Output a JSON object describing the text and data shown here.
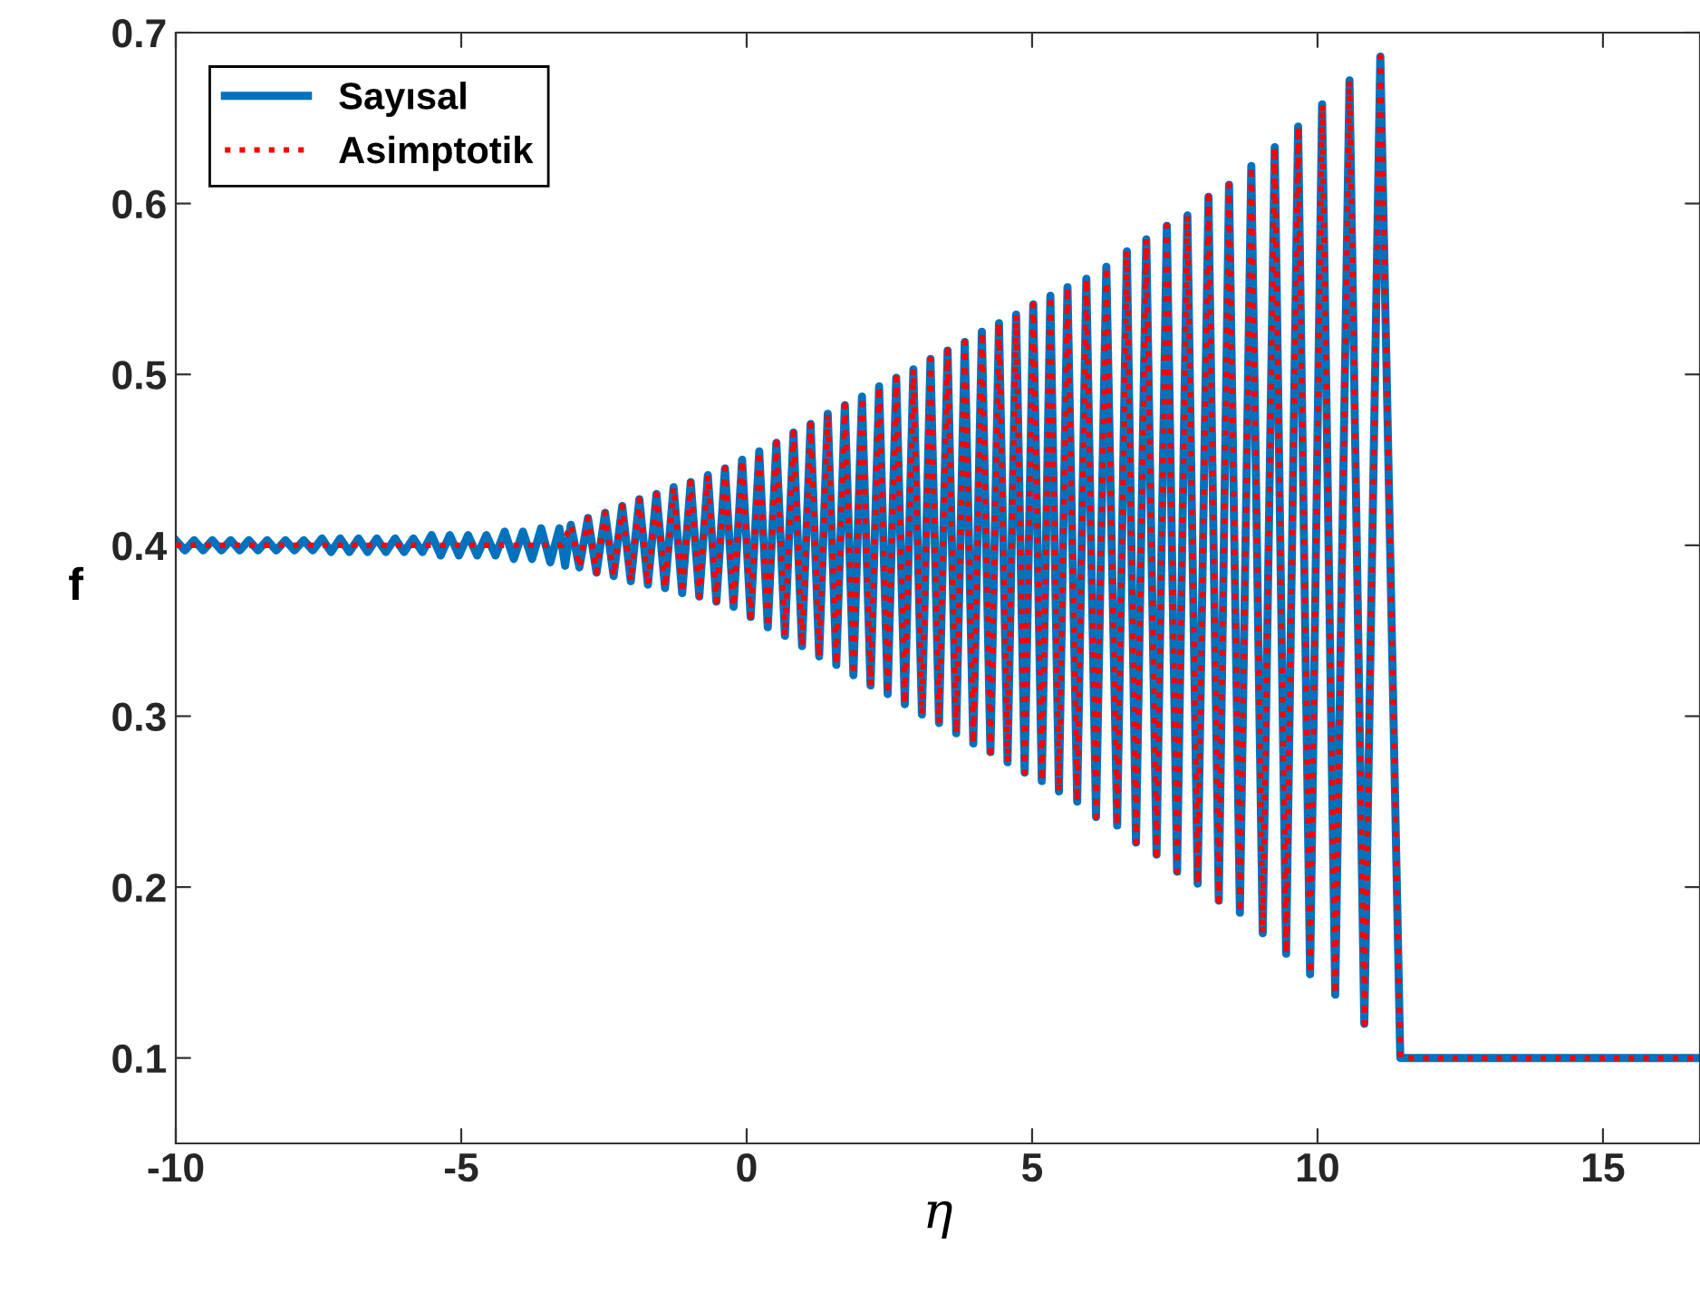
{
  "chart_data": {
    "type": "line",
    "xlabel": "η",
    "ylabel": "f",
    "xlim": [
      -10,
      16.7
    ],
    "ylim": [
      0.05,
      0.7
    ],
    "xticks": [
      -10,
      -5,
      0,
      5,
      10,
      15
    ],
    "yticks": [
      0.1,
      0.2,
      0.3,
      0.4,
      0.5,
      0.6,
      0.7
    ],
    "grid": false,
    "legend": "top left",
    "marker": "none",
    "series": [
      {
        "name": "Sayısal",
        "color": "#0072bd",
        "line_style": "solid",
        "x": [
          -10.0,
          -9.84,
          -9.68,
          -9.52,
          -9.36,
          -9.2,
          -9.04,
          -8.88,
          -8.72,
          -8.56,
          -8.4,
          -8.24,
          -8.08,
          -7.92,
          -7.76,
          -7.6,
          -7.44,
          -7.28,
          -7.12,
          -6.96,
          -6.8,
          -6.64,
          -6.48,
          -6.32,
          -6.16,
          -6.0,
          -5.84,
          -5.68,
          -5.52,
          -5.36,
          -5.2,
          -5.04,
          -4.88,
          -4.72,
          -4.56,
          -4.4,
          -4.24,
          -4.08,
          -3.92,
          -3.76,
          -3.6,
          -3.44,
          -3.28,
          -3.18,
          -3.08,
          -2.93,
          -2.78,
          -2.63,
          -2.48,
          -2.33,
          -2.18,
          -2.03,
          -1.88,
          -1.73,
          -1.58,
          -1.43,
          -1.28,
          -1.13,
          -0.98,
          -0.83,
          -0.68,
          -0.53,
          -0.38,
          -0.23,
          -0.08,
          0.07,
          0.22,
          0.37,
          0.52,
          0.67,
          0.82,
          0.97,
          1.12,
          1.27,
          1.42,
          1.57,
          1.72,
          1.87,
          2.02,
          2.17,
          2.32,
          2.47,
          2.62,
          2.77,
          2.92,
          3.07,
          3.22,
          3.37,
          3.52,
          3.67,
          3.82,
          3.97,
          4.12,
          4.27,
          4.42,
          4.57,
          4.72,
          4.87,
          5.02,
          5.17,
          5.32,
          5.47,
          5.62,
          5.79,
          5.95,
          6.12,
          6.3,
          6.49,
          6.66,
          6.82,
          7.0,
          7.18,
          7.36,
          7.54,
          7.72,
          7.9,
          8.09,
          8.27,
          8.45,
          8.64,
          8.84,
          9.04,
          9.25,
          9.45,
          9.66,
          9.87,
          10.08,
          10.31,
          10.56,
          10.82,
          11.1,
          11.45,
          16.7
        ],
        "values": [
          0.403,
          0.397,
          0.403,
          0.397,
          0.403,
          0.397,
          0.403,
          0.397,
          0.403,
          0.397,
          0.403,
          0.397,
          0.403,
          0.397,
          0.403,
          0.397,
          0.404,
          0.396,
          0.404,
          0.396,
          0.404,
          0.396,
          0.404,
          0.396,
          0.404,
          0.396,
          0.404,
          0.396,
          0.406,
          0.394,
          0.406,
          0.394,
          0.406,
          0.394,
          0.406,
          0.394,
          0.408,
          0.392,
          0.408,
          0.392,
          0.41,
          0.39,
          0.41,
          0.388,
          0.412,
          0.387,
          0.416,
          0.384,
          0.419,
          0.382,
          0.423,
          0.379,
          0.427,
          0.377,
          0.43,
          0.375,
          0.434,
          0.372,
          0.437,
          0.37,
          0.441,
          0.367,
          0.445,
          0.364,
          0.45,
          0.358,
          0.455,
          0.352,
          0.46,
          0.347,
          0.466,
          0.341,
          0.471,
          0.335,
          0.477,
          0.33,
          0.482,
          0.324,
          0.487,
          0.318,
          0.493,
          0.313,
          0.498,
          0.307,
          0.503,
          0.301,
          0.509,
          0.296,
          0.514,
          0.29,
          0.519,
          0.284,
          0.525,
          0.279,
          0.53,
          0.273,
          0.535,
          0.267,
          0.541,
          0.262,
          0.546,
          0.256,
          0.551,
          0.25,
          0.556,
          0.241,
          0.563,
          0.236,
          0.572,
          0.226,
          0.579,
          0.219,
          0.587,
          0.209,
          0.593,
          0.202,
          0.604,
          0.192,
          0.611,
          0.185,
          0.622,
          0.173,
          0.633,
          0.161,
          0.645,
          0.149,
          0.658,
          0.137,
          0.672,
          0.12,
          0.686,
          0.1,
          0.1
        ]
      },
      {
        "name": "Asimptotik",
        "color": "#ff0000",
        "line_style": "dotted",
        "x": [
          -10.0,
          -3.23,
          -3.08,
          -2.93,
          -2.78,
          -2.63,
          -2.48,
          -2.33,
          -2.18,
          -2.03,
          -1.88,
          -1.73,
          -1.58,
          -1.43,
          -1.28,
          -1.13,
          -0.98,
          -0.83,
          -0.68,
          -0.53,
          -0.38,
          -0.23,
          -0.08,
          0.07,
          0.22,
          0.37,
          0.52,
          0.67,
          0.82,
          0.97,
          1.12,
          1.27,
          1.42,
          1.57,
          1.72,
          1.87,
          2.02,
          2.17,
          2.32,
          2.47,
          2.62,
          2.77,
          2.92,
          3.07,
          3.22,
          3.37,
          3.52,
          3.67,
          3.82,
          3.97,
          4.12,
          4.27,
          4.42,
          4.57,
          4.72,
          4.87,
          5.02,
          5.17,
          5.32,
          5.47,
          5.62,
          5.79,
          5.95,
          6.12,
          6.3,
          6.49,
          6.66,
          6.82,
          7.0,
          7.18,
          7.36,
          7.54,
          7.72,
          7.9,
          8.09,
          8.27,
          8.45,
          8.64,
          8.84,
          9.04,
          9.25,
          9.45,
          9.66,
          9.87,
          10.08,
          10.31,
          10.56,
          10.82,
          11.1,
          11.45,
          16.7
        ],
        "values": [
          0.4,
          0.4,
          0.412,
          0.387,
          0.416,
          0.384,
          0.419,
          0.382,
          0.423,
          0.379,
          0.427,
          0.377,
          0.43,
          0.375,
          0.434,
          0.372,
          0.437,
          0.37,
          0.441,
          0.367,
          0.445,
          0.364,
          0.45,
          0.358,
          0.455,
          0.352,
          0.46,
          0.347,
          0.466,
          0.341,
          0.471,
          0.335,
          0.477,
          0.33,
          0.482,
          0.324,
          0.487,
          0.318,
          0.493,
          0.313,
          0.498,
          0.307,
          0.503,
          0.301,
          0.509,
          0.296,
          0.514,
          0.29,
          0.519,
          0.284,
          0.525,
          0.279,
          0.53,
          0.273,
          0.535,
          0.267,
          0.541,
          0.262,
          0.546,
          0.256,
          0.551,
          0.25,
          0.556,
          0.241,
          0.563,
          0.236,
          0.572,
          0.226,
          0.579,
          0.219,
          0.587,
          0.209,
          0.593,
          0.202,
          0.604,
          0.192,
          0.611,
          0.185,
          0.622,
          0.173,
          0.633,
          0.161,
          0.645,
          0.149,
          0.658,
          0.137,
          0.672,
          0.12,
          0.686,
          0.1,
          0.1
        ]
      }
    ]
  }
}
